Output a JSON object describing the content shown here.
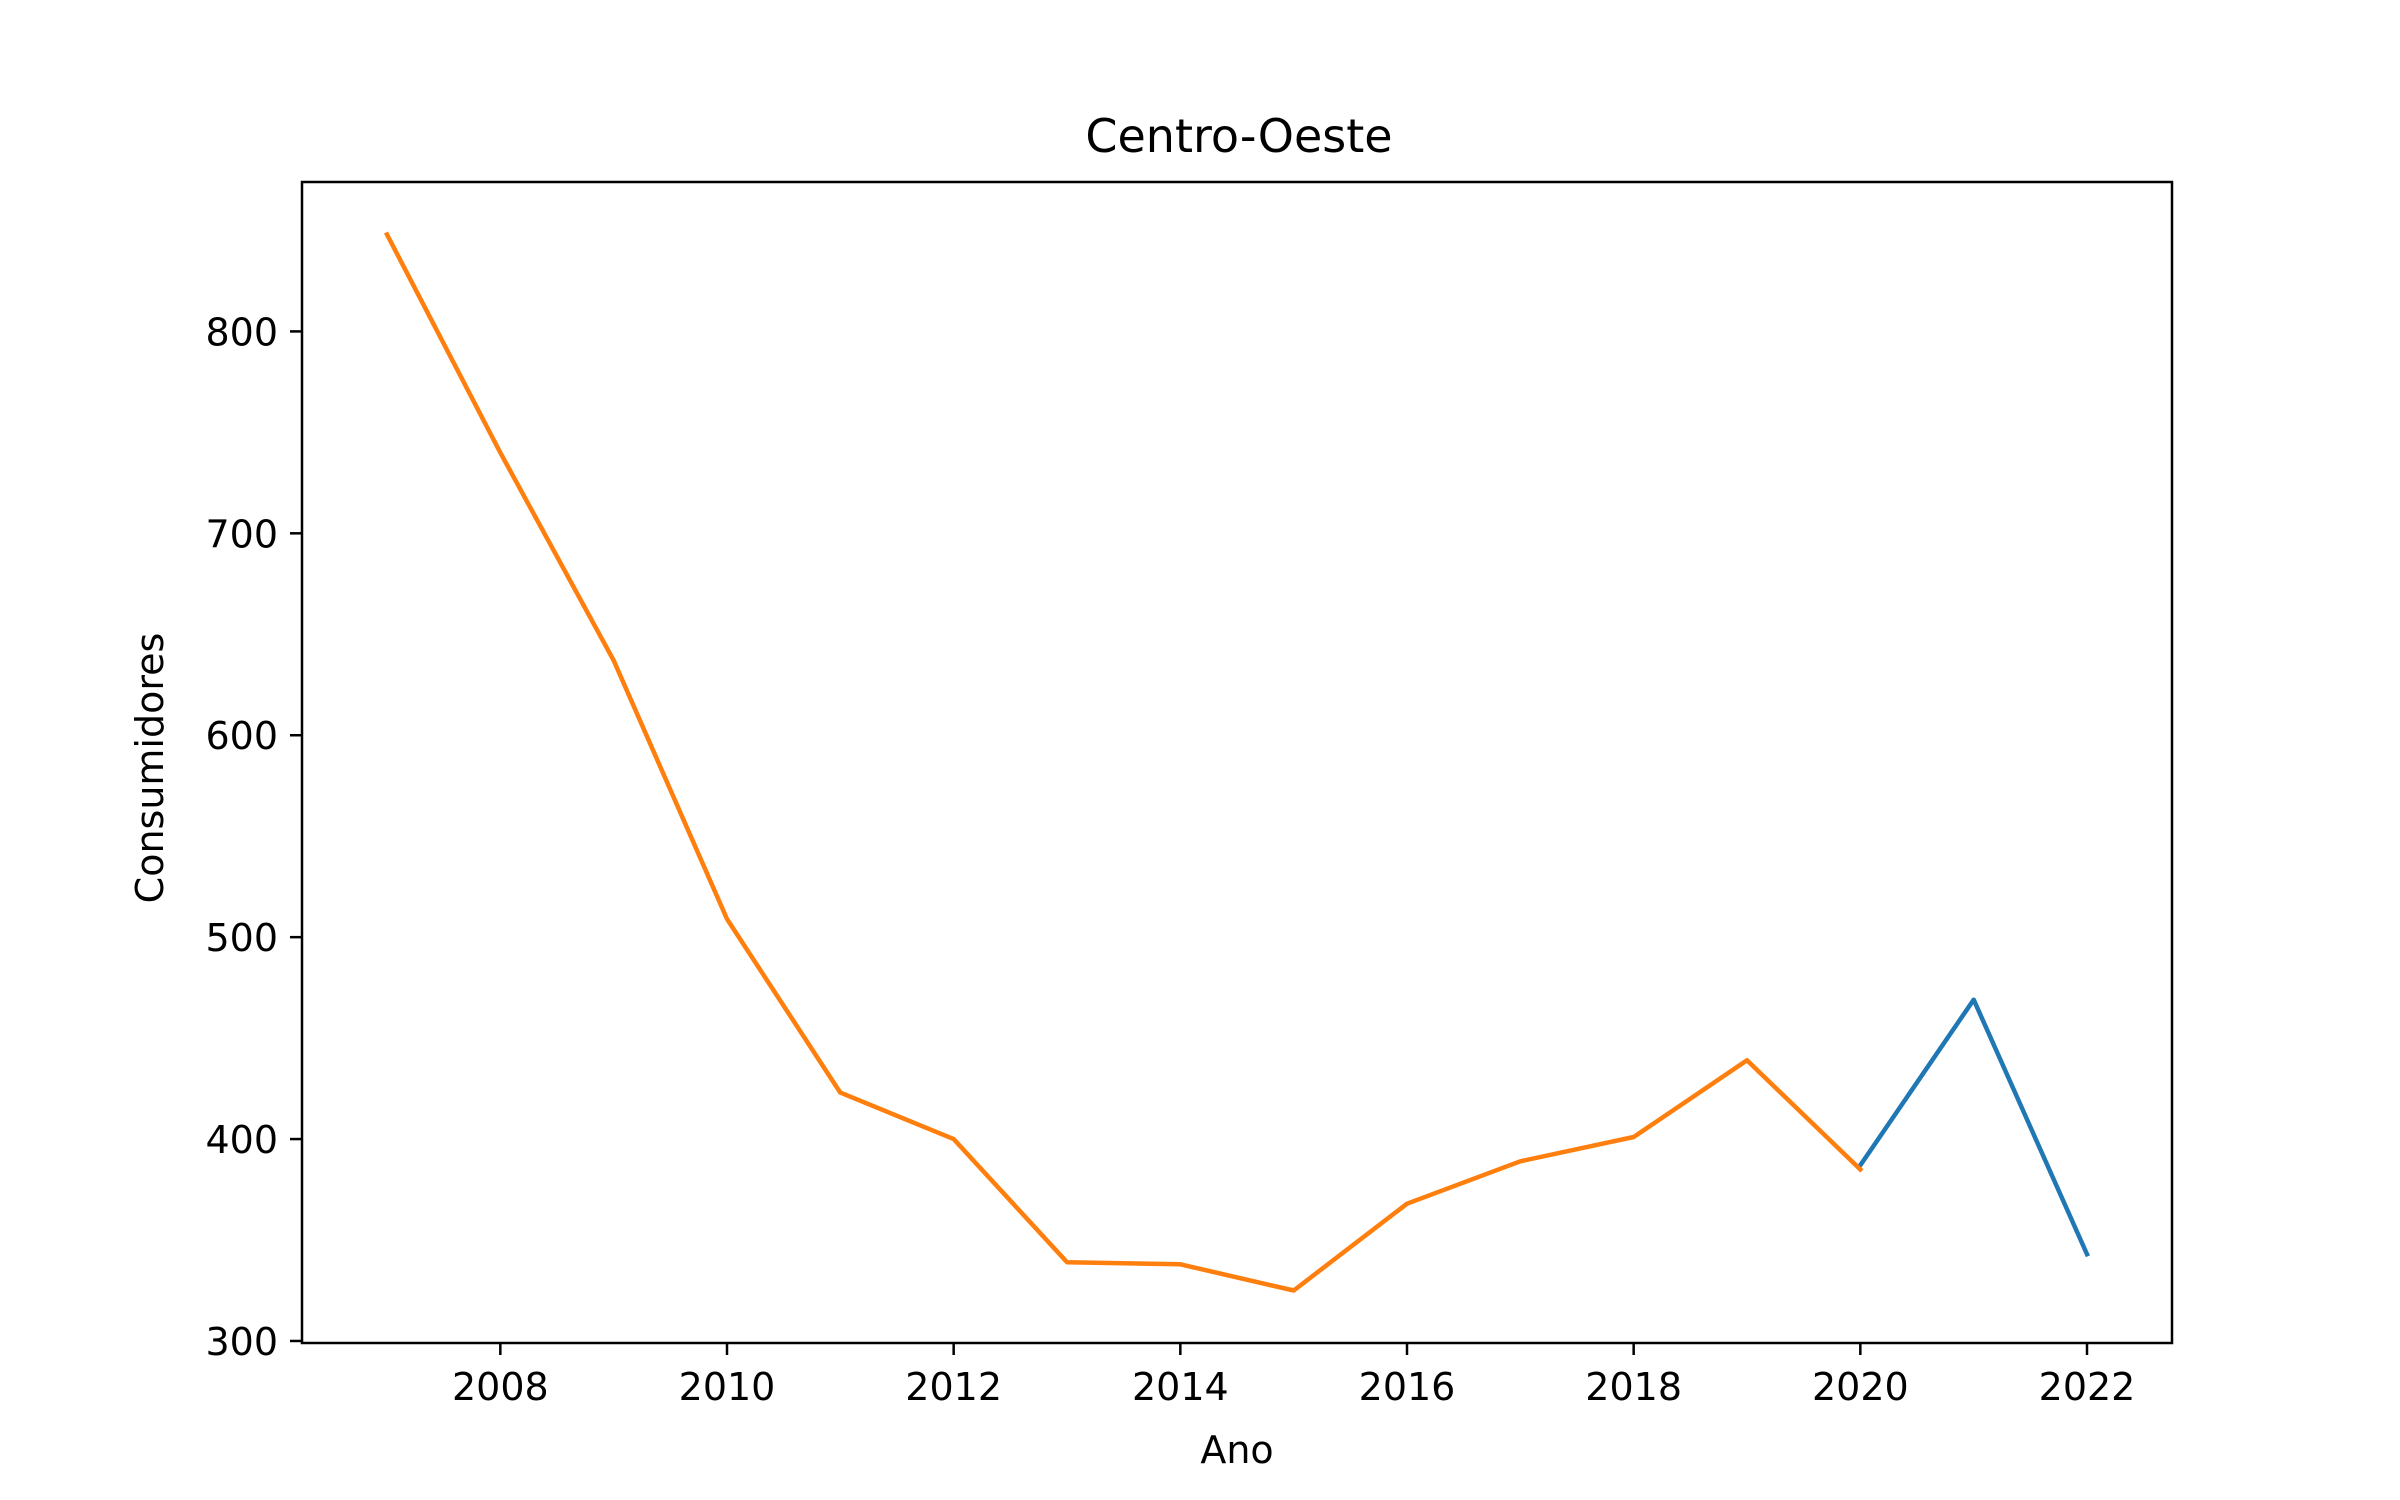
{
  "chart_data": {
    "type": "line",
    "title": "Centro-Oeste",
    "xlabel": "Ano",
    "ylabel": "Consumidores",
    "xlim": [
      2006.25,
      2022.75
    ],
    "ylim": [
      299,
      874
    ],
    "x_ticks": [
      2008,
      2010,
      2012,
      2014,
      2016,
      2018,
      2020,
      2022
    ],
    "y_ticks": [
      300,
      400,
      500,
      600,
      700,
      800
    ],
    "grid": false,
    "legend": false,
    "series": [
      {
        "color": "#1f77b4",
        "x": [
          2020,
          2021,
          2022
        ],
        "values": [
          387,
          469,
          343
        ]
      },
      {
        "color": "#ff7f0e",
        "x": [
          2007,
          2008,
          2009,
          2010,
          2011,
          2012,
          2013,
          2014,
          2015,
          2016,
          2017,
          2018,
          2019,
          2020
        ],
        "values": [
          848,
          740,
          637,
          509,
          423,
          400,
          339,
          338,
          325,
          368,
          389,
          401,
          439,
          385
        ]
      }
    ]
  }
}
